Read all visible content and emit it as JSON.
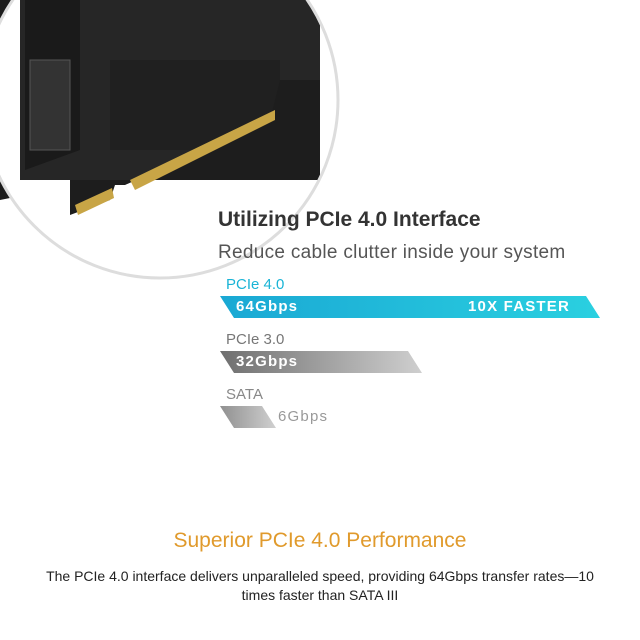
{
  "heading": {
    "title": "Utilizing PCIe 4.0 Interface",
    "subtitle": "Reduce cable clutter inside your system"
  },
  "comparison": [
    {
      "label": "PCIe 4.0",
      "speed": "64Gbps",
      "badge": "10X FASTER",
      "value_gbps": 64,
      "color": "#1ab4d6"
    },
    {
      "label": "PCIe 3.0",
      "speed": "32Gbps",
      "value_gbps": 32,
      "color": "#8a8a8a"
    },
    {
      "label": "SATA",
      "speed": "6Gbps",
      "value_gbps": 6,
      "color": "#a8a8a8"
    }
  ],
  "section": {
    "title": "Superior PCIe 4.0 Performance",
    "body": "The PCIe 4.0 interface delivers unparalleled speed, providing 64Gbps transfer rates—10 times faster than SATA III"
  },
  "colors": {
    "accent": "#1ab4d6",
    "heading_orange": "#e09a2c"
  }
}
